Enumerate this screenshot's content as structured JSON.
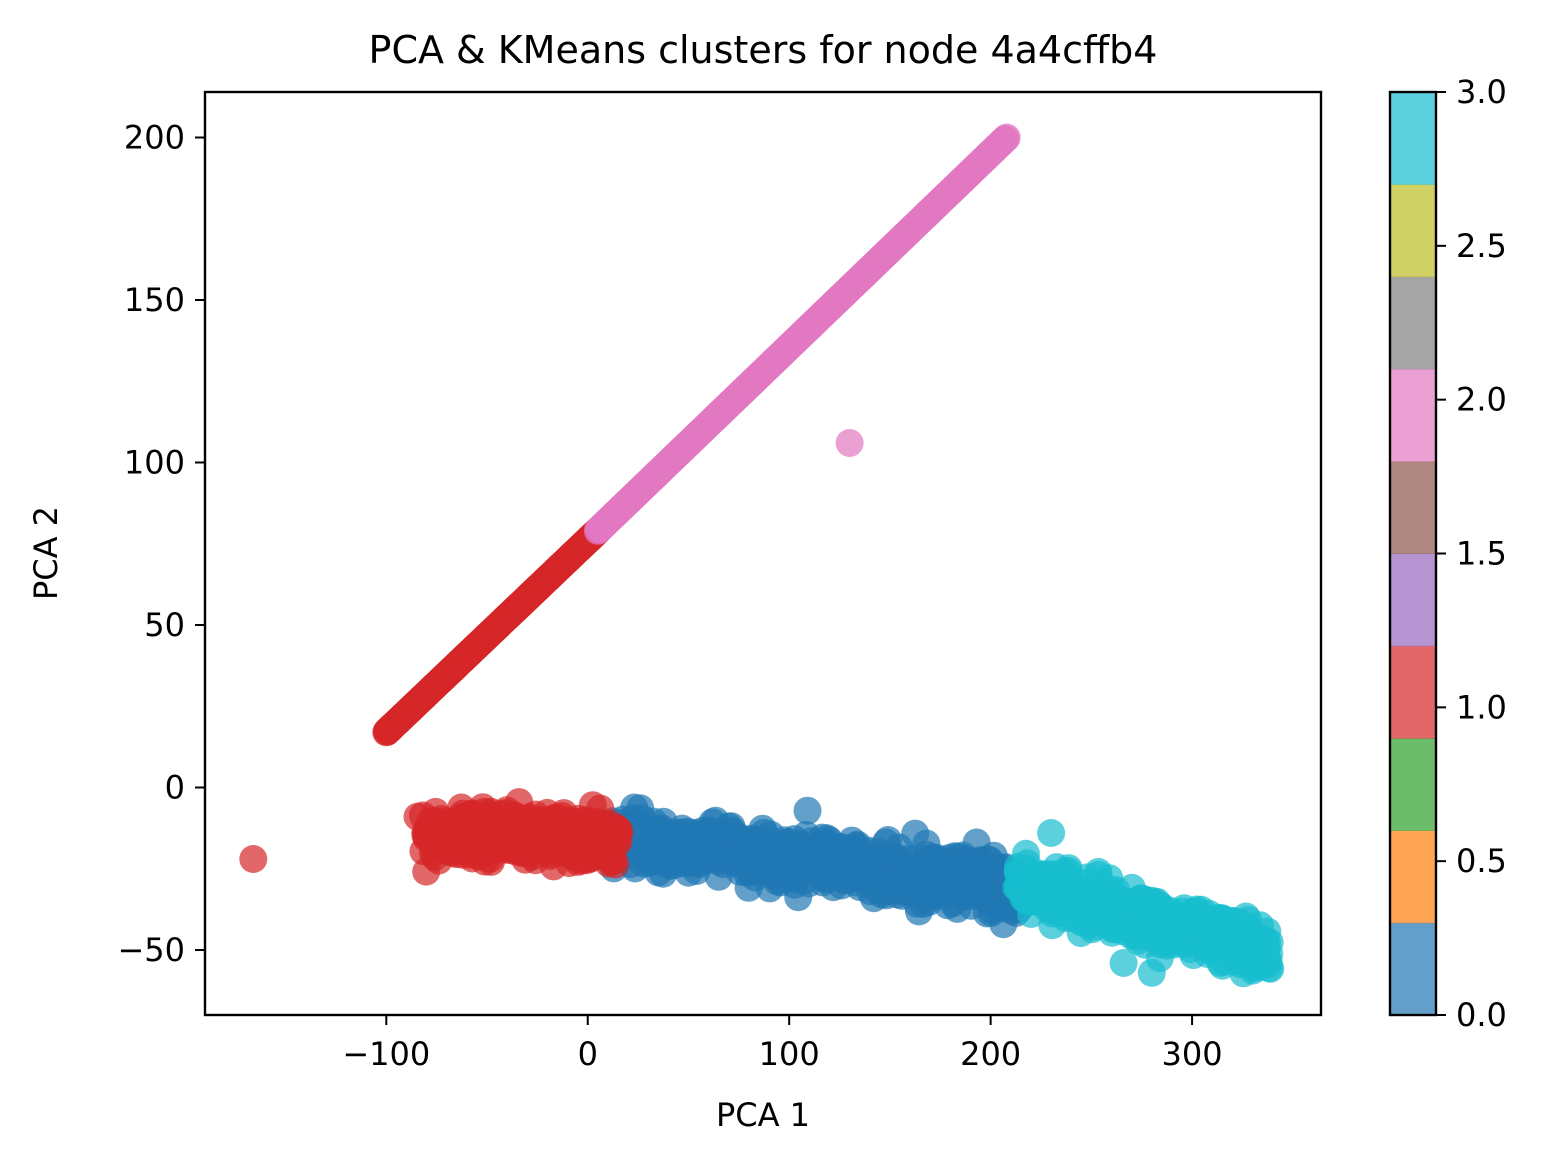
{
  "chart_data": {
    "type": "scatter",
    "title": "PCA & KMeans clusters for node 4a4cffb4",
    "xlabel": "PCA 1",
    "ylabel": "PCA 2",
    "xlim": [
      -190,
      364
    ],
    "ylim": [
      -70,
      214
    ],
    "xticks": [
      -100,
      0,
      100,
      200,
      300
    ],
    "xtick_labels": [
      "−100",
      "0",
      "100",
      "200",
      "300"
    ],
    "yticks": [
      -50,
      0,
      50,
      100,
      150,
      200
    ],
    "ytick_labels": [
      "−50",
      "0",
      "50",
      "100",
      "150",
      "200"
    ],
    "grid": false,
    "colormap": "tab10",
    "clusters": [
      {
        "label": 0,
        "color": "#1f77b4",
        "description_points": "dense band",
        "band": {
          "x_start": 15,
          "x_end": 215,
          "y_at_start": -15,
          "y_at_end": -31,
          "spread": 9
        }
      },
      {
        "label": 1,
        "color": "#d62728",
        "band": {
          "x_start": -80,
          "x_end": 15,
          "y_at_start": -14,
          "y_at_end": -16,
          "spread": 7
        },
        "line": {
          "x_start": -100,
          "x_end": 5,
          "y_at_start": 17,
          "y_at_end": 79
        },
        "isolated": [
          {
            "x": -166,
            "y": -22
          }
        ]
      },
      {
        "label": 2,
        "color": "#e377c2",
        "line": {
          "x_start": 5,
          "x_end": 208,
          "y_at_start": 79,
          "y_at_end": 200
        },
        "isolated": [
          {
            "x": 130,
            "y": 106
          }
        ]
      },
      {
        "label": 3,
        "color": "#17becf",
        "band": {
          "x_start": 215,
          "x_end": 337,
          "y_at_start": -30,
          "y_at_end": -50,
          "spread": 8
        },
        "isolated": [
          {
            "x": 230,
            "y": -14
          },
          {
            "x": 280,
            "y": -57
          },
          {
            "x": 266,
            "y": -54
          }
        ]
      }
    ],
    "colorbar": {
      "min": 0.0,
      "max": 3.0,
      "ticks": [
        0.0,
        0.5,
        1.0,
        1.5,
        2.0,
        2.5,
        3.0
      ],
      "tick_labels": [
        "0.0",
        "0.5",
        "1.0",
        "1.5",
        "2.0",
        "2.5",
        "3.0"
      ],
      "colors": [
        "#1f77b4",
        "#ff7f0e",
        "#2ca02c",
        "#d62728",
        "#9467bd",
        "#8c564b",
        "#e377c2",
        "#7f7f7f",
        "#bcbd22",
        "#17becf"
      ],
      "alpha": 0.7
    }
  }
}
